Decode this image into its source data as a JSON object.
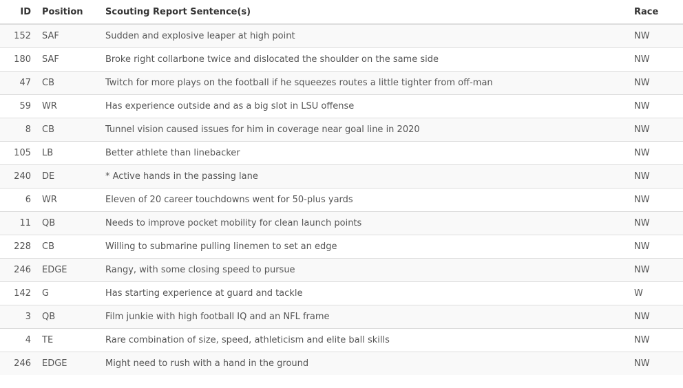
{
  "table": {
    "headers": {
      "id": "ID",
      "position": "Position",
      "sentence": "Scouting Report Sentence(s)",
      "race": "Race"
    },
    "rows": [
      {
        "id": "152",
        "position": "SAF",
        "sentence": "Sudden and explosive leaper at high point",
        "race": "NW"
      },
      {
        "id": "180",
        "position": "SAF",
        "sentence": "Broke right collarbone twice and dislocated the shoulder on the same side",
        "race": "NW"
      },
      {
        "id": "47",
        "position": "CB",
        "sentence": "Twitch for more plays on the football if he squeezes routes a little tighter from off-man",
        "race": "NW"
      },
      {
        "id": "59",
        "position": "WR",
        "sentence": "Has experience outside and as a big slot in LSU offense",
        "race": "NW"
      },
      {
        "id": "8",
        "position": "CB",
        "sentence": "Tunnel vision caused issues for him in coverage near goal line in 2020",
        "race": "NW"
      },
      {
        "id": "105",
        "position": "LB",
        "sentence": "Better athlete than linebacker",
        "race": "NW"
      },
      {
        "id": "240",
        "position": "DE",
        "sentence": "* Active hands in the passing lane",
        "race": "NW"
      },
      {
        "id": "6",
        "position": "WR",
        "sentence": "Eleven of 20 career touchdowns went for 50-plus yards",
        "race": "NW"
      },
      {
        "id": "11",
        "position": "QB",
        "sentence": "Needs to improve pocket mobility for clean launch points",
        "race": "NW"
      },
      {
        "id": "228",
        "position": "CB",
        "sentence": "Willing to submarine pulling linemen to set an edge",
        "race": "NW"
      },
      {
        "id": "246",
        "position": "EDGE",
        "sentence": "Rangy, with some closing speed to pursue",
        "race": "NW"
      },
      {
        "id": "142",
        "position": "G",
        "sentence": "Has starting experience at guard and tackle",
        "race": "W"
      },
      {
        "id": "3",
        "position": "QB",
        "sentence": "Film junkie with high football IQ and an NFL frame",
        "race": "NW"
      },
      {
        "id": "4",
        "position": "TE",
        "sentence": "Rare combination of size, speed, athleticism and elite ball skills",
        "race": "NW"
      },
      {
        "id": "246",
        "position": "EDGE",
        "sentence": "Might need to rush with a hand in the ground",
        "race": "NW"
      }
    ]
  }
}
